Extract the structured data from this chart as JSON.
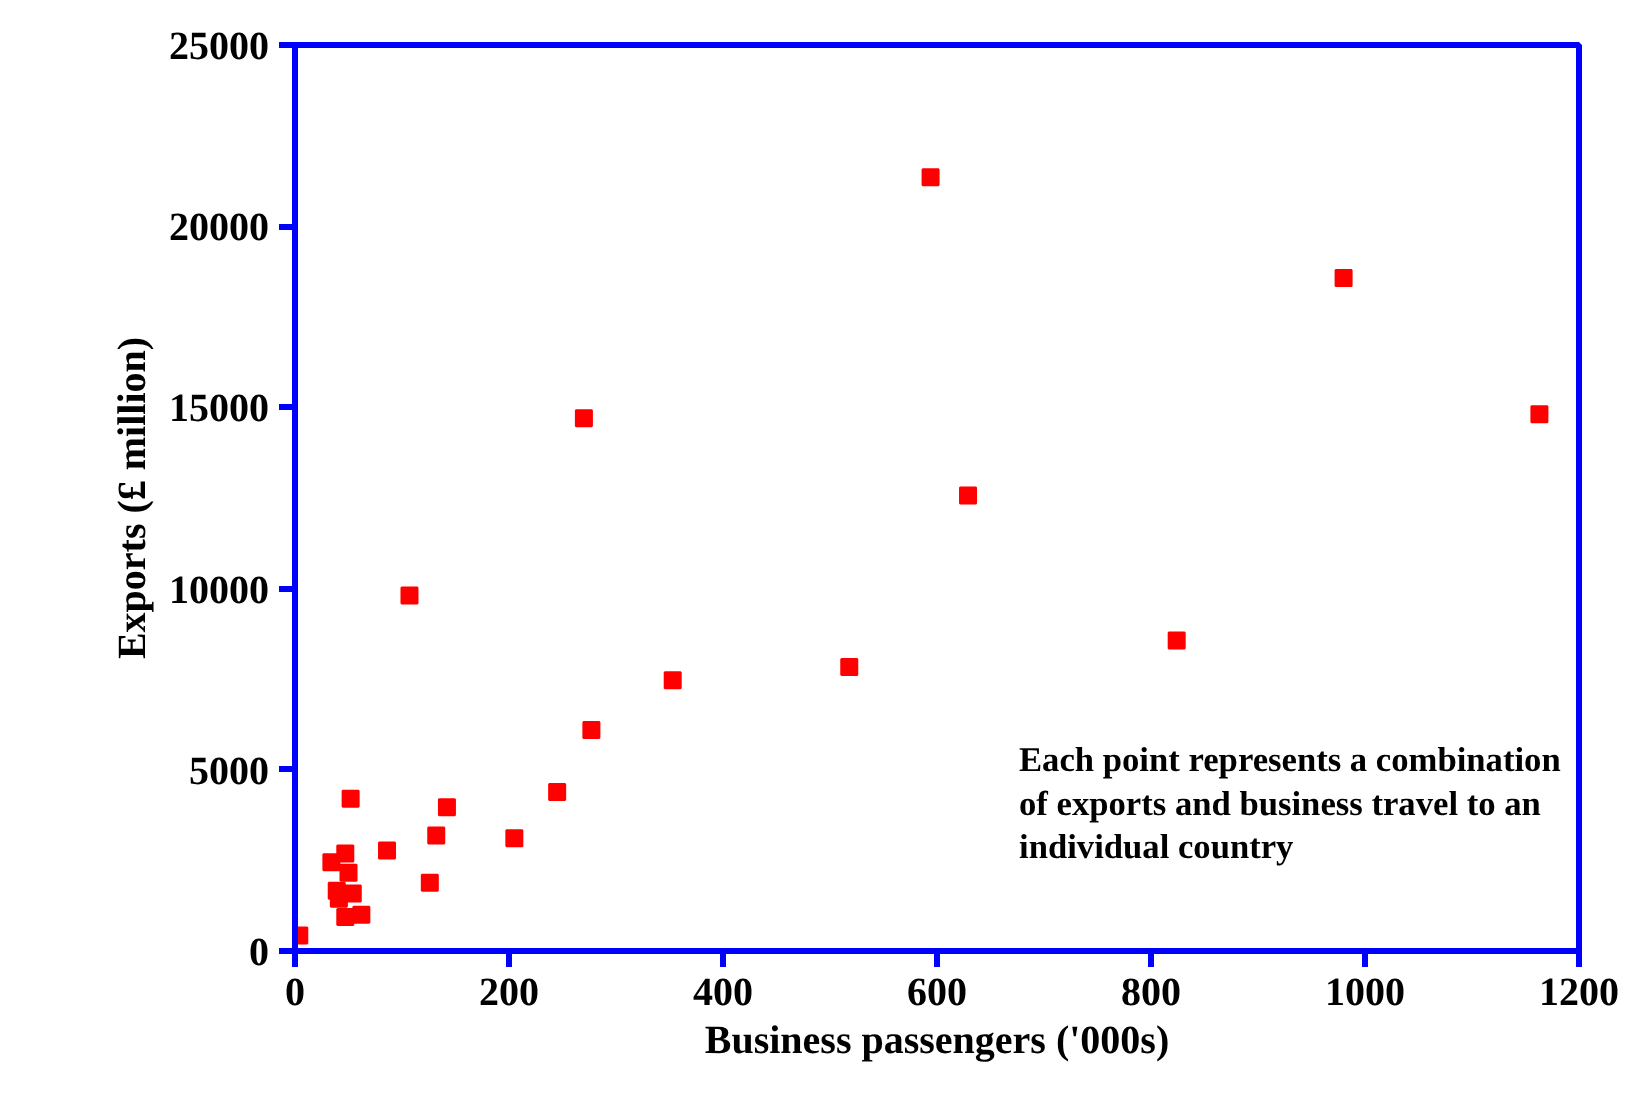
{
  "chart_data": {
    "type": "scatter",
    "xlabel": "Business passengers ('000s)",
    "ylabel": "Exports (£ million)",
    "x": [
      4,
      52,
      142,
      245,
      132,
      205,
      47,
      34,
      86,
      50,
      126,
      39,
      54,
      41,
      47,
      62,
      270,
      629,
      107,
      353,
      518,
      277,
      594,
      980,
      1163,
      824
    ],
    "series": [
      {
        "color": "#ff0000",
        "values": [
          430,
          4200,
          3970,
          4390,
          3190,
          3110,
          2690,
          2450,
          2770,
          2160,
          1880,
          1660,
          1590,
          1440,
          940,
          1000,
          14700,
          12570,
          9810,
          7470,
          7840,
          6100,
          21350,
          18570,
          14810,
          8570
        ]
      }
    ],
    "marker": "square",
    "xlim": [
      0,
      1200
    ],
    "xticks": [
      0,
      200,
      400,
      600,
      800,
      1000,
      1200
    ],
    "ylim": [
      0,
      25000
    ],
    "yticks": [
      0,
      5000,
      10000,
      15000,
      20000,
      25000
    ],
    "grid": false,
    "annotations": [
      "Each point represents a combination\nof exports and business travel to an\nindividual country"
    ]
  }
}
